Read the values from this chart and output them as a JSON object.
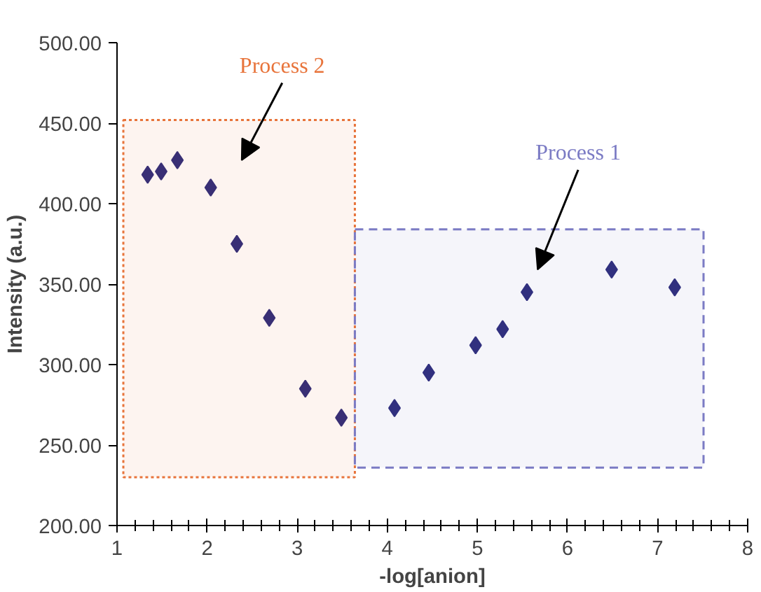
{
  "chart_data": {
    "type": "scatter",
    "xlabel": "-log[anion]",
    "ylabel": "Intensity (a.u.)",
    "x": [
      1.34,
      1.49,
      1.67,
      2.04,
      2.33,
      2.69,
      3.09,
      3.49,
      4.08,
      4.46,
      4.98,
      5.28,
      5.55,
      6.49,
      7.19
    ],
    "series": [
      {
        "color": "#2b2a7a",
        "values": [
          418,
          420,
          427,
          410,
          375,
          329,
          285,
          267,
          273,
          295,
          312,
          322,
          345,
          359,
          348
        ]
      }
    ],
    "marker": "diamond",
    "xlim": [
      1,
      8
    ],
    "xticks": [
      1,
      2,
      3,
      4,
      5,
      6,
      7,
      8
    ],
    "ylim": [
      200,
      500
    ],
    "yticks": [
      {
        "value": 200,
        "label": "200.00"
      },
      {
        "value": 250,
        "label": "250.00"
      },
      {
        "value": 300,
        "label": "300.00"
      },
      {
        "value": 350,
        "label": "350.00"
      },
      {
        "value": 400,
        "label": "400.00"
      },
      {
        "value": 450,
        "label": "450.00"
      },
      {
        "value": 500,
        "label": "500.00"
      }
    ],
    "grid": false,
    "bands": [
      {
        "axis": "x",
        "from": 1.07,
        "to": 3.64,
        "label": "Process 2",
        "color": "#e8743b"
      },
      {
        "axis": "x",
        "from": 3.64,
        "to": 7.51,
        "label": "Process 1",
        "color": "#7b7bc4"
      }
    ]
  }
}
